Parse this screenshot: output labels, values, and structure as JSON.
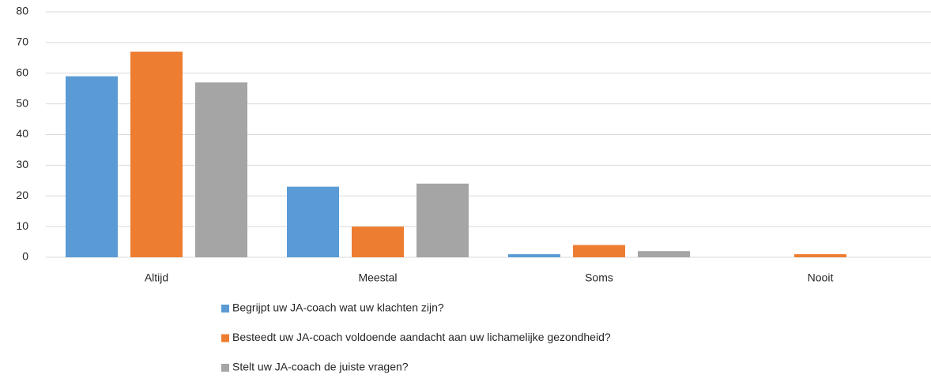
{
  "chart_data": {
    "type": "bar",
    "categories": [
      "Altijd",
      "Meestal",
      "Soms",
      "Nooit"
    ],
    "series": [
      {
        "name": "Begrijpt uw JA-coach wat uw klachten zijn?",
        "color": "#5b9bd5",
        "values": [
          59,
          23,
          1,
          0
        ]
      },
      {
        "name": "Besteedt uw JA-coach voldoende aandacht aan uw lichamelijke gezondheid?",
        "color": "#ed7d31",
        "values": [
          67,
          10,
          4,
          1
        ]
      },
      {
        "name": "Stelt uw JA-coach de juiste vragen?",
        "color": "#a5a5a5",
        "values": [
          57,
          24,
          2,
          0
        ]
      }
    ],
    "ylim": [
      0,
      80
    ],
    "yticks": [
      0,
      10,
      20,
      30,
      40,
      50,
      60,
      70,
      80
    ],
    "grid": true,
    "legend": "bottom"
  }
}
